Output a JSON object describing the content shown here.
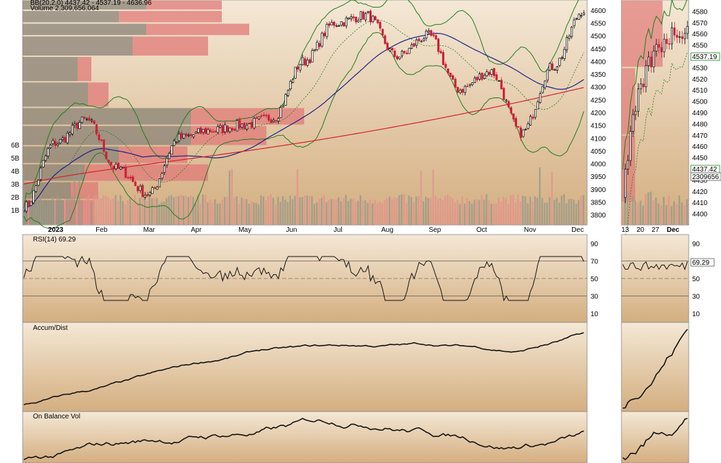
{
  "header": {
    "bb_legend": "BB(20,2.0) 4437.42 - 4537.19 - 4636.96",
    "volume_legend": "Volume 2,309,656,064"
  },
  "panels": {
    "rsi": {
      "title": "RSI(14) 69.29",
      "value_tag": "69.29"
    },
    "accum": {
      "title": "Accum/Dist"
    },
    "obv": {
      "title": "On Balance Vol"
    }
  },
  "side_tags": {
    "price_last": "4537.19",
    "bb_low": "4437.42",
    "volume": "2309656"
  },
  "colors": {
    "panel_top": "#f4e8d6",
    "panel_bottom": "#d4ae80",
    "up": "#000000",
    "down": "#cc1f36",
    "sma50": "#1b1e8a",
    "sma200": "#d2202c",
    "bands": "#1f7a1f",
    "vbp_gray": "#8a8276",
    "vbp_red": "#e07a78"
  },
  "chart_data": [
    {
      "type": "candlestick",
      "title": "",
      "x_tick_labels": [
        "2023",
        "Feb",
        "Mar",
        "Apr",
        "May",
        "Jun",
        "Jul",
        "Aug",
        "Sep",
        "Oct",
        "Nov",
        "Dec"
      ],
      "y_tick_labels": [
        "3800",
        "3850",
        "3900",
        "3950",
        "4000",
        "4050",
        "4100",
        "4150",
        "4200",
        "4250",
        "4300",
        "4350",
        "4400",
        "4450",
        "4500",
        "4550",
        "4600"
      ],
      "ylim": [
        3760,
        4640
      ],
      "monthly_close_anchors": [
        {
          "x": "2023",
          "y": 3830
        },
        {
          "x": "Jan-end",
          "y": 4080
        },
        {
          "x": "Feb",
          "y": 4170
        },
        {
          "x": "Feb-end",
          "y": 3980
        },
        {
          "x": "Mar",
          "y": 3880
        },
        {
          "x": "Mar-end",
          "y": 4100
        },
        {
          "x": "Apr",
          "y": 4130
        },
        {
          "x": "May",
          "y": 4150
        },
        {
          "x": "May-end",
          "y": 4180
        },
        {
          "x": "Jun",
          "y": 4400
        },
        {
          "x": "Jul",
          "y": 4550
        },
        {
          "x": "Aug",
          "y": 4580
        },
        {
          "x": "Aug-mid",
          "y": 4420
        },
        {
          "x": "Sep",
          "y": 4500
        },
        {
          "x": "Sep-end",
          "y": 4290
        },
        {
          "x": "Oct",
          "y": 4360
        },
        {
          "x": "Oct-end",
          "y": 4120
        },
        {
          "x": "Nov",
          "y": 4380
        },
        {
          "x": "Dec",
          "y": 4600
        }
      ],
      "overlays": [
        "SMA(50)",
        "SMA(200)",
        "BB(20,2.0)",
        "Volume",
        "Volume by Price"
      ],
      "volume_axis_labels": [
        "1B",
        "2B",
        "3B",
        "4B",
        "5B",
        "6B"
      ]
    },
    {
      "type": "line",
      "title": "RSI(14) 69.29",
      "y_tick_labels": [
        "10",
        "30",
        "50",
        "70",
        "90"
      ],
      "ylim": [
        0,
        100
      ],
      "reference_lines": [
        30,
        50,
        70
      ],
      "last": 69.29
    },
    {
      "type": "line",
      "title": "Accum/Dist",
      "shape": "rising from lows in Jan to highs in Dec"
    },
    {
      "type": "line",
      "title": "On Balance Vol",
      "shape": "rising, volatile, peak in Aug, new high in Dec"
    },
    {
      "type": "candlestick",
      "title": "",
      "x_tick_labels": [
        "13",
        "20",
        "27",
        "Dec"
      ],
      "y_tick_labels": [
        "4400",
        "4410",
        "4420",
        "4430",
        "4440",
        "4450",
        "4460",
        "4470",
        "4480",
        "4490",
        "4500",
        "4510",
        "4520",
        "4530",
        "4540",
        "4550",
        "4560",
        "4570",
        "4580"
      ],
      "ylim": [
        4390,
        4590
      ]
    }
  ]
}
